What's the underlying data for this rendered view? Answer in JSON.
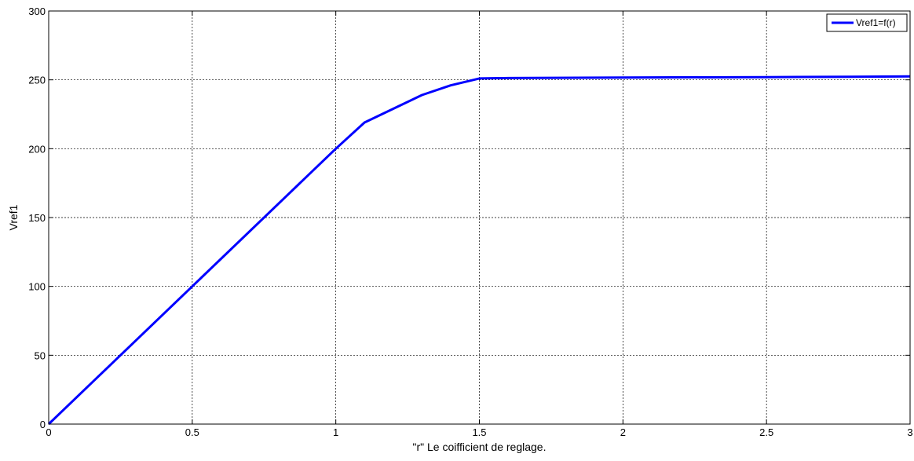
{
  "chart_data": {
    "type": "line",
    "xlabel": "\"r\" Le coifficient de reglage.",
    "ylabel": "Vref1",
    "xlim": [
      0,
      3
    ],
    "ylim": [
      0,
      300
    ],
    "xticks": [
      0,
      0.5,
      1,
      1.5,
      2,
      2.5,
      3
    ],
    "xtick_labels": [
      "0",
      "0.5",
      "1",
      "1.5",
      "2",
      "2.5",
      "3"
    ],
    "yticks": [
      0,
      50,
      100,
      150,
      200,
      250,
      300
    ],
    "ytick_labels": [
      "0",
      "50",
      "100",
      "150",
      "200",
      "250",
      "300"
    ],
    "grid": true,
    "legend_position": "top-right",
    "series": [
      {
        "name": "Vref1=f(r)",
        "color": "#0000ff",
        "x": [
          0,
          0.5,
          1.0,
          1.1,
          1.2,
          1.3,
          1.4,
          1.5,
          1.6,
          2.0,
          2.5,
          2.8,
          3.0
        ],
        "y": [
          0,
          100,
          200,
          219,
          229,
          239,
          246,
          251,
          251.3,
          251.7,
          252,
          252.2,
          252.5
        ]
      }
    ]
  }
}
